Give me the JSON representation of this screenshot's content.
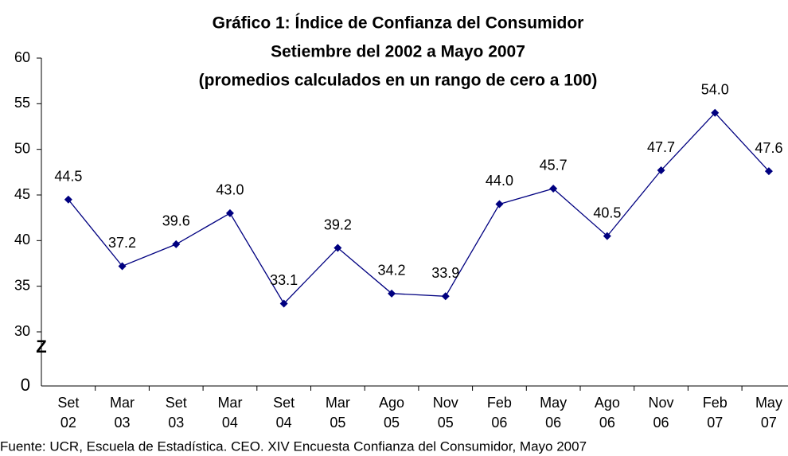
{
  "chart_data": {
    "type": "line",
    "title": [
      "Gráfico 1: Índice de Confianza del Consumidor",
      "Setiembre del 2002 a Mayo 2007",
      "(promedios calculados en un rango de cero a 100)"
    ],
    "categories": [
      [
        "Set",
        "02"
      ],
      [
        "Mar",
        "03"
      ],
      [
        "Set",
        "03"
      ],
      [
        "Mar",
        "04"
      ],
      [
        "Set",
        "04"
      ],
      [
        "Mar",
        "05"
      ],
      [
        "Ago",
        "05"
      ],
      [
        "Nov",
        "05"
      ],
      [
        "Feb",
        "06"
      ],
      [
        "May",
        "06"
      ],
      [
        "Ago",
        "06"
      ],
      [
        "Nov",
        "06"
      ],
      [
        "Feb",
        "07"
      ],
      [
        "May",
        "07"
      ]
    ],
    "series": [
      {
        "color": "#000080",
        "values": [
          44.5,
          37.2,
          39.6,
          43.0,
          33.1,
          39.2,
          34.2,
          33.9,
          44.0,
          45.7,
          40.5,
          47.7,
          54.0,
          47.6
        ],
        "value_labels": [
          "44.5",
          "37.2",
          "39.6",
          "43.0",
          "33.1",
          "39.2",
          "34.2",
          "33.9",
          "44.0",
          "45.7",
          "40.5",
          "47.7",
          "54.0",
          "47.6"
        ]
      }
    ],
    "ylim": [
      0,
      60
    ],
    "yticks": [
      0,
      30,
      35,
      40,
      45,
      50,
      55,
      60
    ],
    "axis_break": true,
    "break_symbol": "Z",
    "source": "Fuente:   UCR, Escuela de Estadística. CEO. XIV Encuesta Confianza del Consumidor, Mayo 2007"
  }
}
